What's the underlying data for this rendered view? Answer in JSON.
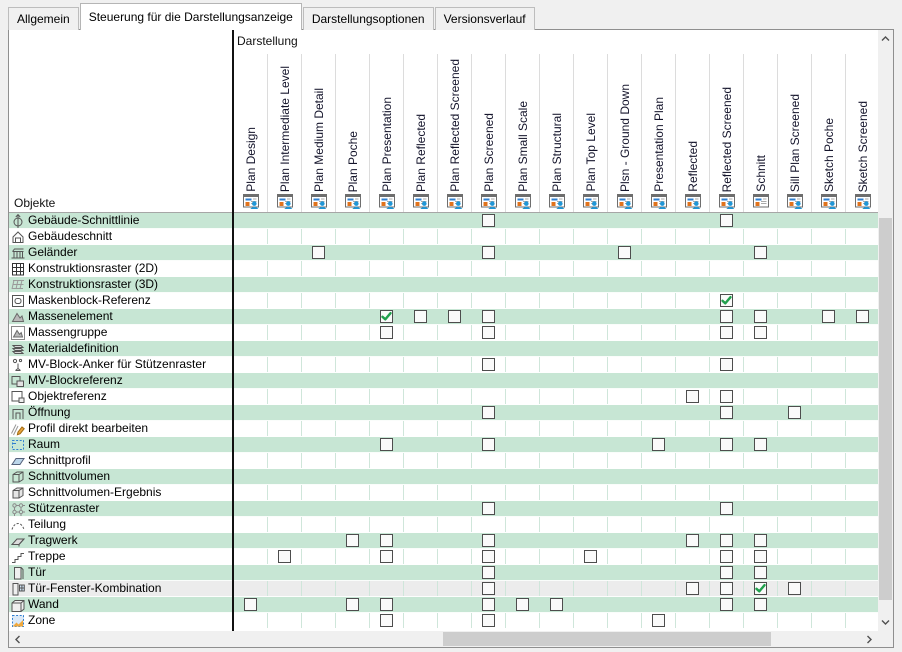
{
  "tabs": [
    {
      "label": "Allgemein",
      "active": false
    },
    {
      "label": "Steuerung für die Darstellungsanzeige",
      "active": true
    },
    {
      "label": "Darstellungsoptionen",
      "active": false
    },
    {
      "label": "Versionsverlauf",
      "active": false
    }
  ],
  "panel": {
    "header": {
      "darstellung_label": "Darstellung",
      "objekte_label": "Objekte"
    },
    "columns": [
      {
        "label": "Plan Design",
        "icon": "view-plan-person-icon"
      },
      {
        "label": "Plan Intermediate Level",
        "icon": "view-plan-person-icon"
      },
      {
        "label": "Plan Medium Detail",
        "icon": "view-plan-person-icon"
      },
      {
        "label": "Plan Poche",
        "icon": "view-plan-person-icon"
      },
      {
        "label": "Plan Presentation",
        "icon": "view-plan-person-icon"
      },
      {
        "label": "Plan Reflected",
        "icon": "view-plan-person-icon"
      },
      {
        "label": "Plan Reflected Screened",
        "icon": "view-plan-person-icon"
      },
      {
        "label": "Plan Screened",
        "icon": "view-plan-person-icon"
      },
      {
        "label": "Plan Small Scale",
        "icon": "view-plan-person-icon"
      },
      {
        "label": "Plan Structural",
        "icon": "view-plan-person-icon"
      },
      {
        "label": "Plan Top Level",
        "icon": "view-plan-person-icon"
      },
      {
        "label": "Plsn - Ground Down",
        "icon": "view-plan-person-icon"
      },
      {
        "label": "Presentation Plan",
        "icon": "view-plan-person-icon"
      },
      {
        "label": "Reflected",
        "icon": "view-plan-person-icon"
      },
      {
        "label": "Reflected Screened",
        "icon": "view-plan-person-icon"
      },
      {
        "label": "Schnitt",
        "icon": "view-section-icon"
      },
      {
        "label": "Sill Plan Screened",
        "icon": "view-plan-person-icon"
      },
      {
        "label": "Sketch Poche",
        "icon": "view-plan-person-icon"
      },
      {
        "label": "Sketch Screened",
        "icon": "view-plan-person-icon"
      }
    ],
    "rows": [
      {
        "label": "Gebäude-Schnittlinie",
        "icon": "section-line-icon",
        "selected": false,
        "checkboxes": [
          {
            "col": 8,
            "checked": false
          },
          {
            "col": 15,
            "checked": false
          }
        ]
      },
      {
        "label": "Gebäudeschnitt",
        "icon": "building-section-icon",
        "selected": false,
        "checkboxes": []
      },
      {
        "label": "Geländer",
        "icon": "railing-icon",
        "selected": false,
        "checkboxes": [
          {
            "col": 3,
            "checked": false
          },
          {
            "col": 8,
            "checked": false
          },
          {
            "col": 12,
            "checked": false
          },
          {
            "col": 16,
            "checked": false
          }
        ]
      },
      {
        "label": "Konstruktionsraster (2D)",
        "icon": "grid-2d-icon",
        "selected": false,
        "checkboxes": []
      },
      {
        "label": "Konstruktionsraster (3D)",
        "icon": "grid-3d-icon",
        "selected": false,
        "checkboxes": []
      },
      {
        "label": "Maskenblock-Referenz",
        "icon": "mask-block-icon",
        "selected": false,
        "checkboxes": [
          {
            "col": 15,
            "checked": true
          }
        ]
      },
      {
        "label": "Massenelement",
        "icon": "mass-element-icon",
        "selected": false,
        "checkboxes": [
          {
            "col": 5,
            "checked": true
          },
          {
            "col": 6,
            "checked": false
          },
          {
            "col": 7,
            "checked": false
          },
          {
            "col": 8,
            "checked": false
          },
          {
            "col": 15,
            "checked": false
          },
          {
            "col": 16,
            "checked": false
          },
          {
            "col": 18,
            "checked": false
          },
          {
            "col": 19,
            "checked": false
          }
        ]
      },
      {
        "label": "Massengruppe",
        "icon": "mass-group-icon",
        "selected": false,
        "checkboxes": [
          {
            "col": 5,
            "checked": false
          },
          {
            "col": 8,
            "checked": false
          },
          {
            "col": 15,
            "checked": false
          },
          {
            "col": 16,
            "checked": false
          }
        ]
      },
      {
        "label": "Materialdefinition",
        "icon": "material-icon",
        "selected": false,
        "checkboxes": []
      },
      {
        "label": "MV-Block-Anker für Stützenraster",
        "icon": "mv-block-anchor-icon",
        "selected": false,
        "checkboxes": [
          {
            "col": 8,
            "checked": false
          },
          {
            "col": 15,
            "checked": false
          }
        ]
      },
      {
        "label": "MV-Blockreferenz",
        "icon": "mv-block-ref-icon",
        "selected": false,
        "checkboxes": []
      },
      {
        "label": "Objektreferenz",
        "icon": "object-ref-icon",
        "selected": false,
        "checkboxes": [
          {
            "col": 14,
            "checked": false
          },
          {
            "col": 15,
            "checked": false
          }
        ]
      },
      {
        "label": "Öffnung",
        "icon": "opening-icon",
        "selected": false,
        "checkboxes": [
          {
            "col": 8,
            "checked": false
          },
          {
            "col": 15,
            "checked": false
          },
          {
            "col": 17,
            "checked": false
          }
        ]
      },
      {
        "label": "Profil direkt bearbeiten",
        "icon": "edit-profile-icon",
        "selected": false,
        "checkboxes": []
      },
      {
        "label": "Raum",
        "icon": "room-icon",
        "selected": false,
        "checkboxes": [
          {
            "col": 5,
            "checked": false
          },
          {
            "col": 8,
            "checked": false
          },
          {
            "col": 13,
            "checked": false
          },
          {
            "col": 15,
            "checked": false
          },
          {
            "col": 16,
            "checked": false
          }
        ]
      },
      {
        "label": "Schnittprofil",
        "icon": "section-profile-icon",
        "selected": false,
        "checkboxes": []
      },
      {
        "label": "Schnittvolumen",
        "icon": "section-volume-icon",
        "selected": false,
        "checkboxes": []
      },
      {
        "label": "Schnittvolumen-Ergebnis",
        "icon": "section-volume-result-icon",
        "selected": false,
        "checkboxes": []
      },
      {
        "label": "Stützenraster",
        "icon": "column-grid-icon",
        "selected": false,
        "checkboxes": [
          {
            "col": 8,
            "checked": false
          },
          {
            "col": 15,
            "checked": false
          }
        ]
      },
      {
        "label": "Teilung",
        "icon": "division-icon",
        "selected": false,
        "checkboxes": []
      },
      {
        "label": "Tragwerk",
        "icon": "structural-member-icon",
        "selected": false,
        "checkboxes": [
          {
            "col": 4,
            "checked": false
          },
          {
            "col": 5,
            "checked": false
          },
          {
            "col": 8,
            "checked": false
          },
          {
            "col": 14,
            "checked": false
          },
          {
            "col": 15,
            "checked": false
          },
          {
            "col": 16,
            "checked": false
          }
        ]
      },
      {
        "label": "Treppe",
        "icon": "stair-icon",
        "selected": false,
        "checkboxes": [
          {
            "col": 2,
            "checked": false
          },
          {
            "col": 5,
            "checked": false
          },
          {
            "col": 8,
            "checked": false
          },
          {
            "col": 11,
            "checked": false
          },
          {
            "col": 15,
            "checked": false
          },
          {
            "col": 16,
            "checked": false
          }
        ]
      },
      {
        "label": "Tür",
        "icon": "door-icon",
        "selected": false,
        "checkboxes": [
          {
            "col": 8,
            "checked": false
          },
          {
            "col": 15,
            "checked": false
          },
          {
            "col": 16,
            "checked": false
          }
        ]
      },
      {
        "label": "Tür-Fenster-Kombination",
        "icon": "door-window-icon",
        "selected": true,
        "checkboxes": [
          {
            "col": 8,
            "checked": false
          },
          {
            "col": 14,
            "checked": false
          },
          {
            "col": 15,
            "checked": false
          },
          {
            "col": 16,
            "checked": true
          },
          {
            "col": 17,
            "checked": false
          }
        ]
      },
      {
        "label": "Wand",
        "icon": "wall-icon",
        "selected": false,
        "checkboxes": [
          {
            "col": 1,
            "checked": false
          },
          {
            "col": 4,
            "checked": false
          },
          {
            "col": 5,
            "checked": false
          },
          {
            "col": 8,
            "checked": false
          },
          {
            "col": 9,
            "checked": false
          },
          {
            "col": 10,
            "checked": false
          },
          {
            "col": 15,
            "checked": false
          },
          {
            "col": 16,
            "checked": false
          }
        ]
      },
      {
        "label": "Zone",
        "icon": "zone-icon",
        "selected": false,
        "checkboxes": [
          {
            "col": 5,
            "checked": false
          },
          {
            "col": 8,
            "checked": false
          },
          {
            "col": 13,
            "checked": false
          }
        ]
      }
    ]
  },
  "colors": {
    "row_stripe_green": "#c7e6d4",
    "row_selected_grey": "#ececec",
    "check_green": "#21a04d",
    "scrollbar_thumb": "#cdcdcd",
    "icon_blue": "#2196d6",
    "icon_orange": "#e0731d"
  }
}
